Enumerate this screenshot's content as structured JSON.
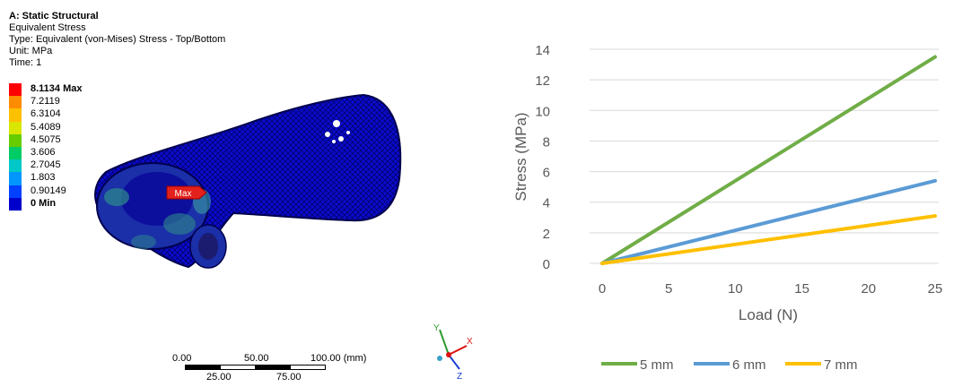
{
  "analysis": {
    "title": "A: Static Structural",
    "result": "Equivalent Stress",
    "type": "Type: Equivalent (von-Mises) Stress - Top/Bottom",
    "unit": "Unit: MPa",
    "time": "Time: 1"
  },
  "contour_legend": [
    {
      "label": "8.1134 Max",
      "color": "#ff0000",
      "bold": true
    },
    {
      "label": "7.2119",
      "color": "#ff8c00",
      "bold": false
    },
    {
      "label": "6.3104",
      "color": "#ffc000",
      "bold": false
    },
    {
      "label": "5.4089",
      "color": "#d8e600",
      "bold": false
    },
    {
      "label": "4.5075",
      "color": "#66cc00",
      "bold": false
    },
    {
      "label": "3.606",
      "color": "#00cc66",
      "bold": false
    },
    {
      "label": "2.7045",
      "color": "#00c8c8",
      "bold": false
    },
    {
      "label": "1.803",
      "color": "#0096ff",
      "bold": false
    },
    {
      "label": "0.90149",
      "color": "#0040ff",
      "bold": false
    },
    {
      "label": "0 Min",
      "color": "#0000cc",
      "bold": true
    }
  ],
  "max_marker": "Max",
  "scale": {
    "top_labels": [
      "0.00",
      "50.00",
      "100.00 (mm)"
    ],
    "bottom_labels": [
      "25.00",
      "75.00"
    ]
  },
  "triad": {
    "y": "Y",
    "x": "X",
    "z": "Z"
  },
  "chart_data": {
    "type": "line",
    "xlabel": "Load (N)",
    "ylabel": "Stress (MPa)",
    "x": [
      0,
      25
    ],
    "xlim": [
      0,
      25
    ],
    "ylim": [
      0,
      14
    ],
    "xticks": [
      0,
      5,
      10,
      15,
      20,
      25
    ],
    "yticks": [
      0,
      2,
      4,
      6,
      8,
      10,
      12,
      14
    ],
    "grid": "horizontal",
    "legend_position": "bottom",
    "series": [
      {
        "name": "5 mm",
        "color": "#70ad47",
        "values": [
          0,
          13.5
        ]
      },
      {
        "name": "6 mm",
        "color": "#5b9bd5",
        "values": [
          0,
          5.4
        ]
      },
      {
        "name": "7 mm",
        "color": "#ffc000",
        "values": [
          0,
          3.1
        ]
      }
    ]
  }
}
